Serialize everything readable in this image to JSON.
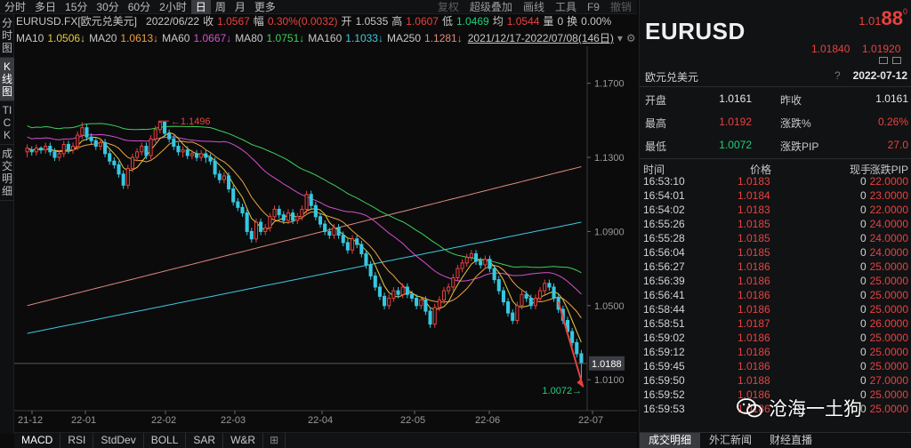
{
  "toolbar": {
    "periods": [
      "分时",
      "多日",
      "15分",
      "30分",
      "60分",
      "2小时",
      "日",
      "周",
      "月",
      "更多"
    ],
    "active_period": "日",
    "tools": [
      "复权",
      "超级叠加",
      "画线",
      "工具",
      "F9",
      "撤销"
    ]
  },
  "left_tabs": [
    "分时图",
    "K线图",
    "TICK",
    "成交明细"
  ],
  "active_left_tab": "K线图",
  "info1": {
    "symbol": "EURUSD.FX[欧元兑美元]",
    "date": "2022/06/22",
    "close_label": "收",
    "close": "1.0567",
    "change_label": "幅",
    "change": "0.30%(0.0032)",
    "open_label": "开",
    "open": "1.0535",
    "high_label": "高",
    "high": "1.0607",
    "low_label": "低",
    "low": "1.0469",
    "avg_label": "均",
    "avg": "1.0544",
    "vol_label": "量",
    "vol": "0",
    "turnover_label": "换",
    "turnover": "0.00%"
  },
  "info2": {
    "ma": [
      {
        "label": "MA10",
        "value": "1.0506↓",
        "color": "#e8c93f"
      },
      {
        "label": "MA20",
        "value": "1.0613↓",
        "color": "#f0a040"
      },
      {
        "label": "MA60",
        "value": "1.0667↓",
        "color": "#d84fd0"
      },
      {
        "label": "MA80",
        "value": "1.0751↓",
        "color": "#3fd058"
      },
      {
        "label": "MA160",
        "value": "1.1033↓",
        "color": "#40c8e0"
      },
      {
        "label": "MA250",
        "value": "1.1281↓",
        "color": "#e08c7c"
      }
    ],
    "range": "2021/12/17-2022/07/08(146日)"
  },
  "chart_data": {
    "type": "candlestick",
    "ylim": [
      1.0,
      1.19
    ],
    "yticks": [
      "1.1700",
      "1.1300",
      "1.0900",
      "1.0500",
      "1.0100"
    ],
    "xticks": [
      "21-12",
      "22-01",
      "22-02",
      "22-03",
      "22-04",
      "22-05",
      "22-06",
      "22-07"
    ],
    "annot_high": "1.1496",
    "annot_low": "1.0072",
    "current_price": "1.0188",
    "colors": {
      "up": "#e8423f",
      "down": "#36c8e0",
      "arrow": "#e8423f"
    },
    "candles": [
      [
        1.133,
        1.135,
        1.13,
        1.137
      ],
      [
        1.134,
        1.133,
        1.131,
        1.136
      ],
      [
        1.133,
        1.135,
        1.131,
        1.137
      ],
      [
        1.135,
        1.134,
        1.132,
        1.136
      ],
      [
        1.134,
        1.136,
        1.132,
        1.138
      ],
      [
        1.136,
        1.133,
        1.131,
        1.138
      ],
      [
        1.133,
        1.13,
        1.128,
        1.135
      ],
      [
        1.13,
        1.132,
        1.128,
        1.134
      ],
      [
        1.132,
        1.137,
        1.13,
        1.139
      ],
      [
        1.137,
        1.134,
        1.132,
        1.139
      ],
      [
        1.134,
        1.136,
        1.132,
        1.138
      ],
      [
        1.136,
        1.142,
        1.134,
        1.144
      ],
      [
        1.142,
        1.146,
        1.14,
        1.149
      ],
      [
        1.146,
        1.141,
        1.139,
        1.148
      ],
      [
        1.141,
        1.139,
        1.137,
        1.143
      ],
      [
        1.139,
        1.136,
        1.134,
        1.141
      ],
      [
        1.136,
        1.138,
        1.134,
        1.14
      ],
      [
        1.138,
        1.132,
        1.13,
        1.14
      ],
      [
        1.132,
        1.128,
        1.126,
        1.134
      ],
      [
        1.128,
        1.126,
        1.124,
        1.13
      ],
      [
        1.126,
        1.121,
        1.119,
        1.128
      ],
      [
        1.121,
        1.115,
        1.113,
        1.123
      ],
      [
        1.115,
        1.124,
        1.113,
        1.126
      ],
      [
        1.124,
        1.13,
        1.122,
        1.132
      ],
      [
        1.13,
        1.133,
        1.128,
        1.135
      ],
      [
        1.133,
        1.136,
        1.131,
        1.138
      ],
      [
        1.136,
        1.131,
        1.129,
        1.138
      ],
      [
        1.131,
        1.14,
        1.129,
        1.142
      ],
      [
        1.14,
        1.145,
        1.138,
        1.147
      ],
      [
        1.145,
        1.149,
        1.143,
        1.1496
      ],
      [
        1.149,
        1.143,
        1.141,
        1.149
      ],
      [
        1.143,
        1.14,
        1.138,
        1.145
      ],
      [
        1.14,
        1.136,
        1.134,
        1.142
      ],
      [
        1.136,
        1.133,
        1.131,
        1.138
      ],
      [
        1.133,
        1.134,
        1.13,
        1.136
      ],
      [
        1.134,
        1.131,
        1.129,
        1.136
      ],
      [
        1.131,
        1.132,
        1.129,
        1.134
      ],
      [
        1.132,
        1.13,
        1.128,
        1.134
      ],
      [
        1.13,
        1.132,
        1.128,
        1.134
      ],
      [
        1.132,
        1.13,
        1.127,
        1.134
      ],
      [
        1.13,
        1.128,
        1.126,
        1.132
      ],
      [
        1.128,
        1.121,
        1.119,
        1.13
      ],
      [
        1.121,
        1.118,
        1.116,
        1.123
      ],
      [
        1.118,
        1.12,
        1.116,
        1.122
      ],
      [
        1.12,
        1.113,
        1.111,
        1.122
      ],
      [
        1.113,
        1.106,
        1.104,
        1.115
      ],
      [
        1.106,
        1.103,
        1.101,
        1.108
      ],
      [
        1.103,
        1.1,
        1.098,
        1.105
      ],
      [
        1.1,
        1.09,
        1.088,
        1.102
      ],
      [
        1.09,
        1.086,
        1.084,
        1.092
      ],
      [
        1.086,
        1.095,
        1.084,
        1.097
      ],
      [
        1.095,
        1.09,
        1.088,
        1.097
      ],
      [
        1.09,
        1.092,
        1.088,
        1.094
      ],
      [
        1.092,
        1.098,
        1.09,
        1.1
      ],
      [
        1.098,
        1.102,
        1.096,
        1.104
      ],
      [
        1.102,
        1.099,
        1.097,
        1.104
      ],
      [
        1.099,
        1.096,
        1.094,
        1.101
      ],
      [
        1.096,
        1.1,
        1.094,
        1.102
      ],
      [
        1.1,
        1.096,
        1.094,
        1.102
      ],
      [
        1.096,
        1.098,
        1.094,
        1.1
      ],
      [
        1.098,
        1.102,
        1.096,
        1.104
      ],
      [
        1.102,
        1.11,
        1.1,
        1.112
      ],
      [
        1.11,
        1.104,
        1.102,
        1.112
      ],
      [
        1.104,
        1.098,
        1.096,
        1.106
      ],
      [
        1.098,
        1.094,
        1.092,
        1.1
      ],
      [
        1.094,
        1.09,
        1.088,
        1.096
      ],
      [
        1.09,
        1.088,
        1.086,
        1.092
      ],
      [
        1.088,
        1.092,
        1.086,
        1.094
      ],
      [
        1.092,
        1.088,
        1.086,
        1.094
      ],
      [
        1.088,
        1.084,
        1.082,
        1.09
      ],
      [
        1.084,
        1.08,
        1.078,
        1.086
      ],
      [
        1.08,
        1.086,
        1.078,
        1.088
      ],
      [
        1.086,
        1.083,
        1.081,
        1.088
      ],
      [
        1.083,
        1.078,
        1.076,
        1.085
      ],
      [
        1.078,
        1.072,
        1.07,
        1.08
      ],
      [
        1.072,
        1.066,
        1.064,
        1.074
      ],
      [
        1.066,
        1.06,
        1.058,
        1.068
      ],
      [
        1.06,
        1.055,
        1.053,
        1.062
      ],
      [
        1.055,
        1.05,
        1.048,
        1.057
      ],
      [
        1.05,
        1.054,
        1.048,
        1.056
      ],
      [
        1.054,
        1.058,
        1.052,
        1.06
      ],
      [
        1.058,
        1.056,
        1.054,
        1.06
      ],
      [
        1.056,
        1.06,
        1.054,
        1.062
      ],
      [
        1.06,
        1.056,
        1.054,
        1.062
      ],
      [
        1.056,
        1.054,
        1.052,
        1.058
      ],
      [
        1.054,
        1.05,
        1.048,
        1.056
      ],
      [
        1.05,
        1.053,
        1.048,
        1.055
      ],
      [
        1.053,
        1.047,
        1.045,
        1.055
      ],
      [
        1.047,
        1.04,
        1.038,
        1.049
      ],
      [
        1.04,
        1.049,
        1.038,
        1.051
      ],
      [
        1.049,
        1.053,
        1.047,
        1.055
      ],
      [
        1.053,
        1.058,
        1.051,
        1.06
      ],
      [
        1.058,
        1.06,
        1.056,
        1.062
      ],
      [
        1.06,
        1.065,
        1.058,
        1.067
      ],
      [
        1.065,
        1.07,
        1.063,
        1.072
      ],
      [
        1.07,
        1.073,
        1.068,
        1.075
      ],
      [
        1.073,
        1.076,
        1.071,
        1.078
      ],
      [
        1.076,
        1.078,
        1.074,
        1.08
      ],
      [
        1.078,
        1.074,
        1.072,
        1.08
      ],
      [
        1.074,
        1.072,
        1.07,
        1.076
      ],
      [
        1.072,
        1.075,
        1.07,
        1.077
      ],
      [
        1.075,
        1.07,
        1.068,
        1.077
      ],
      [
        1.07,
        1.064,
        1.062,
        1.072
      ],
      [
        1.064,
        1.058,
        1.056,
        1.066
      ],
      [
        1.058,
        1.052,
        1.05,
        1.06
      ],
      [
        1.052,
        1.046,
        1.044,
        1.054
      ],
      [
        1.046,
        1.042,
        1.04,
        1.048
      ],
      [
        1.042,
        1.05,
        1.04,
        1.052
      ],
      [
        1.05,
        1.056,
        1.048,
        1.058
      ],
      [
        1.056,
        1.054,
        1.052,
        1.058
      ],
      [
        1.054,
        1.05,
        1.048,
        1.056
      ],
      [
        1.05,
        1.054,
        1.048,
        1.056
      ],
      [
        1.054,
        1.058,
        1.052,
        1.06
      ],
      [
        1.058,
        1.062,
        1.056,
        1.064
      ],
      [
        1.062,
        1.06,
        1.058,
        1.064
      ],
      [
        1.06,
        1.054,
        1.052,
        1.062
      ],
      [
        1.054,
        1.048,
        1.046,
        1.056
      ],
      [
        1.048,
        1.042,
        1.04,
        1.05
      ],
      [
        1.042,
        1.036,
        1.034,
        1.044
      ],
      [
        1.036,
        1.03,
        1.028,
        1.038
      ],
      [
        1.03,
        1.024,
        1.022,
        1.032
      ],
      [
        1.024,
        1.0188,
        1.0072,
        1.026
      ]
    ]
  },
  "panel": {
    "symbol": "EURUSD",
    "last_main": "1.01",
    "last_big": "88",
    "last_sup": "0",
    "bid": "1.01840",
    "ask": "1.01920",
    "name": "欧元兑美元",
    "qmark": "?",
    "date": "2022-07-12",
    "stats": [
      {
        "l1": "开盘",
        "v1": "1.0161",
        "c1": "#e8e8e8",
        "l2": "昨收",
        "v2": "1.0161",
        "c2": "#e8e8e8"
      },
      {
        "l1": "最高",
        "v1": "1.0192",
        "c1": "#e8423f",
        "l2": "涨跌%",
        "v2": "0.26%",
        "c2": "#e8423f"
      },
      {
        "l1": "最低",
        "v1": "1.0072",
        "c1": "#1fd07a",
        "l2": "涨跌PIP",
        "v2": "27.0",
        "c2": "#e8423f"
      }
    ],
    "tick_headers": [
      "时间",
      "价格",
      "现手",
      "涨跌PIP"
    ],
    "ticks": [
      [
        "16:53:10",
        "1.0183",
        "0",
        "22.0000"
      ],
      [
        "16:54:01",
        "1.0184",
        "0",
        "23.0000"
      ],
      [
        "16:54:02",
        "1.0183",
        "0",
        "22.0000"
      ],
      [
        "16:55:26",
        "1.0185",
        "0",
        "24.0000"
      ],
      [
        "16:55:28",
        "1.0185",
        "0",
        "24.0000"
      ],
      [
        "16:56:04",
        "1.0185",
        "0",
        "24.0000"
      ],
      [
        "16:56:27",
        "1.0186",
        "0",
        "25.0000"
      ],
      [
        "16:56:39",
        "1.0186",
        "0",
        "25.0000"
      ],
      [
        "16:56:41",
        "1.0186",
        "0",
        "25.0000"
      ],
      [
        "16:58:44",
        "1.0186",
        "0",
        "25.0000"
      ],
      [
        "16:58:51",
        "1.0187",
        "0",
        "26.0000"
      ],
      [
        "16:59:02",
        "1.0186",
        "0",
        "25.0000"
      ],
      [
        "16:59:12",
        "1.0186",
        "0",
        "25.0000"
      ],
      [
        "16:59:45",
        "1.0186",
        "0",
        "25.0000"
      ],
      [
        "16:59:50",
        "1.0188",
        "0",
        "27.0000"
      ],
      [
        "16:59:52",
        "1.0186",
        "0",
        "25.0000"
      ],
      [
        "16:59:53",
        "1.0186",
        "0",
        "25.0000"
      ]
    ],
    "tabs": [
      "成交明细",
      "外汇新闻",
      "财经直播"
    ]
  },
  "bottom_tabs": [
    "MACD",
    "RSI",
    "StdDev",
    "BOLL",
    "SAR",
    "W&R"
  ],
  "watermark": "沧海一土狗"
}
